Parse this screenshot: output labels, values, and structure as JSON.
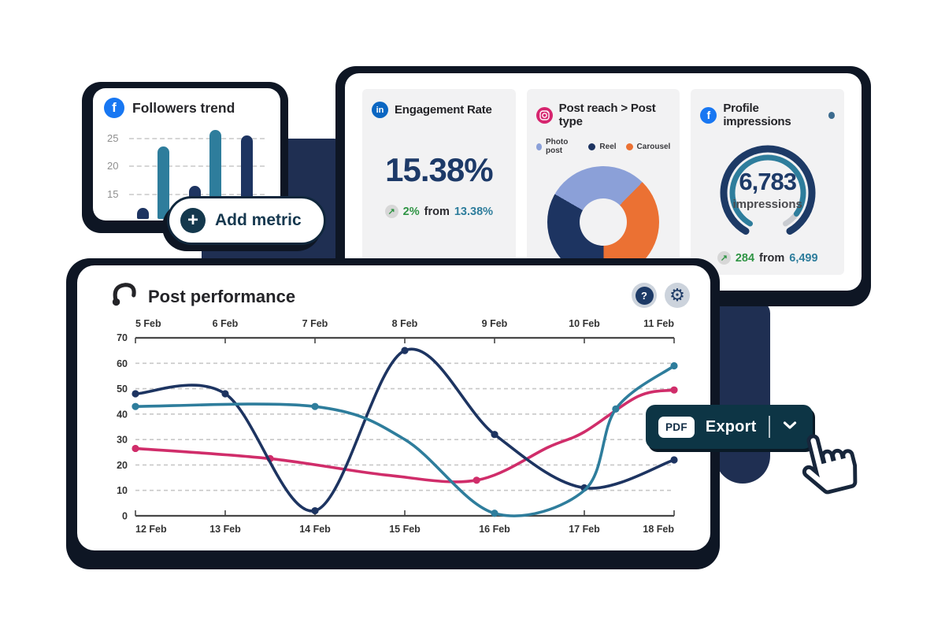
{
  "icons": {
    "facebook": "f",
    "linkedin": "in",
    "plus": "+",
    "trend_up": "↗",
    "help": "?",
    "gear": "⚙"
  },
  "followers_card": {
    "title": "Followers trend"
  },
  "add_metric_label": "Add metric",
  "metrics": {
    "engagement": {
      "title": "Engagement Rate",
      "value": "15.38%",
      "delta": "2%",
      "from_word": "from",
      "previous": "13.38%"
    },
    "post_reach": {
      "title": "Post reach > Post type"
    },
    "impressions": {
      "title": "Profile impressions",
      "value": "6,783",
      "unit": "impressions",
      "delta": "284",
      "from_word": "from",
      "previous": "6,499"
    }
  },
  "performance": {
    "title": "Post performance"
  },
  "export_button": {
    "badge": "PDF",
    "label": "Export"
  },
  "colors": {
    "navy": "#1d3461",
    "teal": "#2e7d9c",
    "pink": "#d02d6a",
    "orange": "#eb7133",
    "periwinkle": "#8ba0d8",
    "dark_shadow": "#0e1624",
    "decor_navy": "#1f2f52",
    "export_bg": "#0d3545",
    "facebook_blue": "#1877f2",
    "linkedin_blue": "#0a66c2",
    "instagram_pink": "#d6246e",
    "green": "#2f9444",
    "gray_remainder": "#c9ccd1"
  },
  "chart_data": [
    {
      "id": "followers-trend",
      "type": "bar",
      "title": "Followers trend",
      "values": [
        13,
        24,
        17,
        27,
        26
      ],
      "bar_colors": [
        "#1d3461",
        "#2e7d9c",
        "#1d3461",
        "#2e7d9c",
        "#1d3461"
      ],
      "y_ticks": [
        15,
        20,
        25
      ],
      "ylim": [
        11,
        28
      ],
      "grid": "dashed"
    },
    {
      "id": "post-reach-by-type",
      "type": "pie",
      "title": "Post reach > Post type",
      "start_deg": -60,
      "slices": [
        {
          "label": "Photo post",
          "value": 29,
          "color": "#8ba0d8"
        },
        {
          "label": "Carousel",
          "value": 37.5,
          "color": "#eb7133"
        },
        {
          "label": "Reel",
          "value": 33.5,
          "color": "#1d3461"
        }
      ],
      "legend_order": [
        "Photo post",
        "Reel",
        "Carousel"
      ],
      "legend_position": "top"
    },
    {
      "id": "profile-impressions-gauge",
      "type": "gauge",
      "title": "Profile impressions",
      "value": 6783,
      "unit": "impressions",
      "delta": 284,
      "previous": 6499,
      "progress": 0.92,
      "arc_start_deg": 210,
      "arc_end_deg": 510,
      "track_color": "#1d3a66",
      "progress_color": "#2e7d9c",
      "remainder_color": "#c9ccd1"
    },
    {
      "id": "post-performance",
      "type": "line",
      "title": "Post performance",
      "x_top_labels": [
        "5 Feb",
        "6 Feb",
        "7 Feb",
        "8 Feb",
        "9 Feb",
        "10 Feb",
        "11 Feb"
      ],
      "x_bottom_labels": [
        "12 Feb",
        "13 Feb",
        "14 Feb",
        "15 Feb",
        "16 Feb",
        "17 Feb",
        "18 Feb"
      ],
      "y_ticks": [
        0,
        10,
        20,
        30,
        40,
        50,
        60,
        70
      ],
      "ylim": [
        0,
        70
      ],
      "grid": "dashed",
      "series": [
        {
          "name": "series-pink",
          "color": "#d02d6a",
          "points": [
            [
              0,
              26.5,
              1
            ],
            [
              1.5,
              22.5,
              1
            ],
            [
              2.8,
              16,
              0
            ],
            [
              3.8,
              14,
              1
            ],
            [
              4.6,
              27,
              0
            ],
            [
              5,
              33,
              0
            ],
            [
              5.6,
              47,
              0
            ],
            [
              6,
              49.5,
              1
            ]
          ]
        },
        {
          "name": "series-navy",
          "color": "#1d3461",
          "points": [
            [
              0,
              48,
              1
            ],
            [
              1,
              48,
              1
            ],
            [
              2,
              2,
              1
            ],
            [
              3,
              65,
              1
            ],
            [
              4,
              32,
              1
            ],
            [
              5,
              11,
              1
            ],
            [
              6,
              22,
              1
            ]
          ]
        },
        {
          "name": "series-teal",
          "color": "#2e7d9c",
          "points": [
            [
              0,
              43,
              1
            ],
            [
              2,
              43,
              1
            ],
            [
              3,
              30,
              0
            ],
            [
              4,
              1,
              1
            ],
            [
              5,
              10,
              0
            ],
            [
              5.35,
              42,
              1
            ],
            [
              6,
              59,
              1
            ]
          ]
        }
      ]
    }
  ]
}
